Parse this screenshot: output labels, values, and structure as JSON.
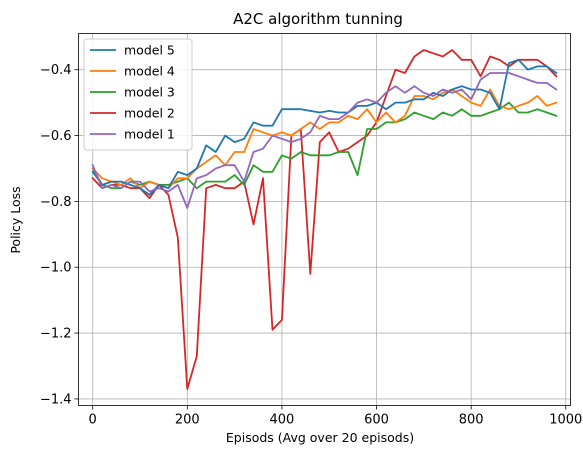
{
  "chart_data": {
    "type": "line",
    "title": "A2C algorithm tunning",
    "xlabel": "Episods (Avg over 20 episods)",
    "ylabel": "Policy Loss",
    "xlim": [
      -30,
      1010
    ],
    "ylim": [
      -1.42,
      -0.29
    ],
    "xticks": [
      0,
      200,
      400,
      600,
      800,
      1000
    ],
    "xtick_labels": [
      "0",
      "200",
      "400",
      "600",
      "800",
      "1000"
    ],
    "yticks": [
      -1.4,
      -1.2,
      -1.0,
      -0.8,
      -0.6,
      -0.4
    ],
    "ytick_labels": [
      "−1.4",
      "−1.2",
      "−1.0",
      "−0.8",
      "−0.6",
      "−0.4"
    ],
    "grid": true,
    "legend_position": "top-left",
    "x": [
      0,
      20,
      40,
      60,
      80,
      100,
      120,
      140,
      160,
      180,
      200,
      220,
      240,
      260,
      280,
      300,
      320,
      340,
      360,
      380,
      400,
      420,
      440,
      460,
      480,
      500,
      520,
      540,
      560,
      580,
      600,
      620,
      640,
      660,
      680,
      700,
      720,
      740,
      760,
      780,
      800,
      820,
      840,
      860,
      880,
      900,
      920,
      940,
      960,
      980
    ],
    "series": [
      {
        "name": "model 5",
        "color": "#1f77b4",
        "values": [
          -0.71,
          -0.75,
          -0.74,
          -0.74,
          -0.75,
          -0.76,
          -0.78,
          -0.75,
          -0.76,
          -0.71,
          -0.72,
          -0.7,
          -0.63,
          -0.65,
          -0.6,
          -0.62,
          -0.61,
          -0.56,
          -0.57,
          -0.57,
          -0.52,
          -0.52,
          -0.52,
          -0.525,
          -0.53,
          -0.525,
          -0.53,
          -0.53,
          -0.51,
          -0.51,
          -0.5,
          -0.52,
          -0.5,
          -0.5,
          -0.49,
          -0.49,
          -0.47,
          -0.48,
          -0.46,
          -0.45,
          -0.46,
          -0.46,
          -0.47,
          -0.52,
          -0.38,
          -0.37,
          -0.4,
          -0.39,
          -0.39,
          -0.41
        ]
      },
      {
        "name": "model 4",
        "color": "#ff7f0e",
        "values": [
          -0.7,
          -0.73,
          -0.74,
          -0.75,
          -0.73,
          -0.76,
          -0.74,
          -0.75,
          -0.76,
          -0.73,
          -0.73,
          -0.7,
          -0.68,
          -0.66,
          -0.69,
          -0.65,
          -0.65,
          -0.58,
          -0.59,
          -0.6,
          -0.59,
          -0.6,
          -0.58,
          -0.56,
          -0.58,
          -0.56,
          -0.56,
          -0.54,
          -0.55,
          -0.52,
          -0.56,
          -0.53,
          -0.56,
          -0.54,
          -0.48,
          -0.48,
          -0.49,
          -0.47,
          -0.46,
          -0.48,
          -0.5,
          -0.51,
          -0.46,
          -0.51,
          -0.52,
          -0.51,
          -0.5,
          -0.48,
          -0.51,
          -0.5
        ]
      },
      {
        "name": "model 3",
        "color": "#2ca02c",
        "values": [
          -0.7,
          -0.75,
          -0.76,
          -0.76,
          -0.74,
          -0.75,
          -0.74,
          -0.75,
          -0.75,
          -0.74,
          -0.73,
          -0.76,
          -0.74,
          -0.74,
          -0.74,
          -0.72,
          -0.75,
          -0.69,
          -0.71,
          -0.71,
          -0.66,
          -0.67,
          -0.65,
          -0.66,
          -0.66,
          -0.66,
          -0.65,
          -0.65,
          -0.72,
          -0.58,
          -0.58,
          -0.56,
          -0.56,
          -0.55,
          -0.53,
          -0.54,
          -0.55,
          -0.53,
          -0.54,
          -0.52,
          -0.54,
          -0.54,
          -0.53,
          -0.52,
          -0.5,
          -0.53,
          -0.53,
          -0.52,
          -0.53,
          -0.54
        ]
      },
      {
        "name": "model 2",
        "color": "#d62728",
        "values": [
          -0.73,
          -0.76,
          -0.75,
          -0.75,
          -0.76,
          -0.76,
          -0.79,
          -0.75,
          -0.78,
          -0.91,
          -1.37,
          -1.27,
          -0.76,
          -0.75,
          -0.76,
          -0.76,
          -0.74,
          -0.87,
          -0.73,
          -1.19,
          -1.16,
          -0.6,
          -0.58,
          -1.02,
          -0.62,
          -0.59,
          -0.65,
          -0.64,
          -0.62,
          -0.6,
          -0.56,
          -0.48,
          -0.4,
          -0.41,
          -0.36,
          -0.34,
          -0.35,
          -0.36,
          -0.34,
          -0.37,
          -0.37,
          -0.42,
          -0.36,
          -0.37,
          -0.39,
          -0.37,
          -0.37,
          -0.37,
          -0.39,
          -0.42
        ]
      },
      {
        "name": "model 1",
        "color": "#9467bd",
        "values": [
          -0.69,
          -0.76,
          -0.75,
          -0.76,
          -0.74,
          -0.74,
          -0.77,
          -0.76,
          -0.77,
          -0.75,
          -0.82,
          -0.73,
          -0.72,
          -0.7,
          -0.69,
          -0.69,
          -0.74,
          -0.65,
          -0.64,
          -0.6,
          -0.61,
          -0.62,
          -0.61,
          -0.59,
          -0.54,
          -0.55,
          -0.55,
          -0.53,
          -0.5,
          -0.49,
          -0.5,
          -0.47,
          -0.45,
          -0.47,
          -0.45,
          -0.47,
          -0.48,
          -0.46,
          -0.47,
          -0.46,
          -0.49,
          -0.43,
          -0.41,
          -0.41,
          -0.41,
          -0.42,
          -0.43,
          -0.44,
          -0.44,
          -0.46
        ]
      }
    ]
  }
}
